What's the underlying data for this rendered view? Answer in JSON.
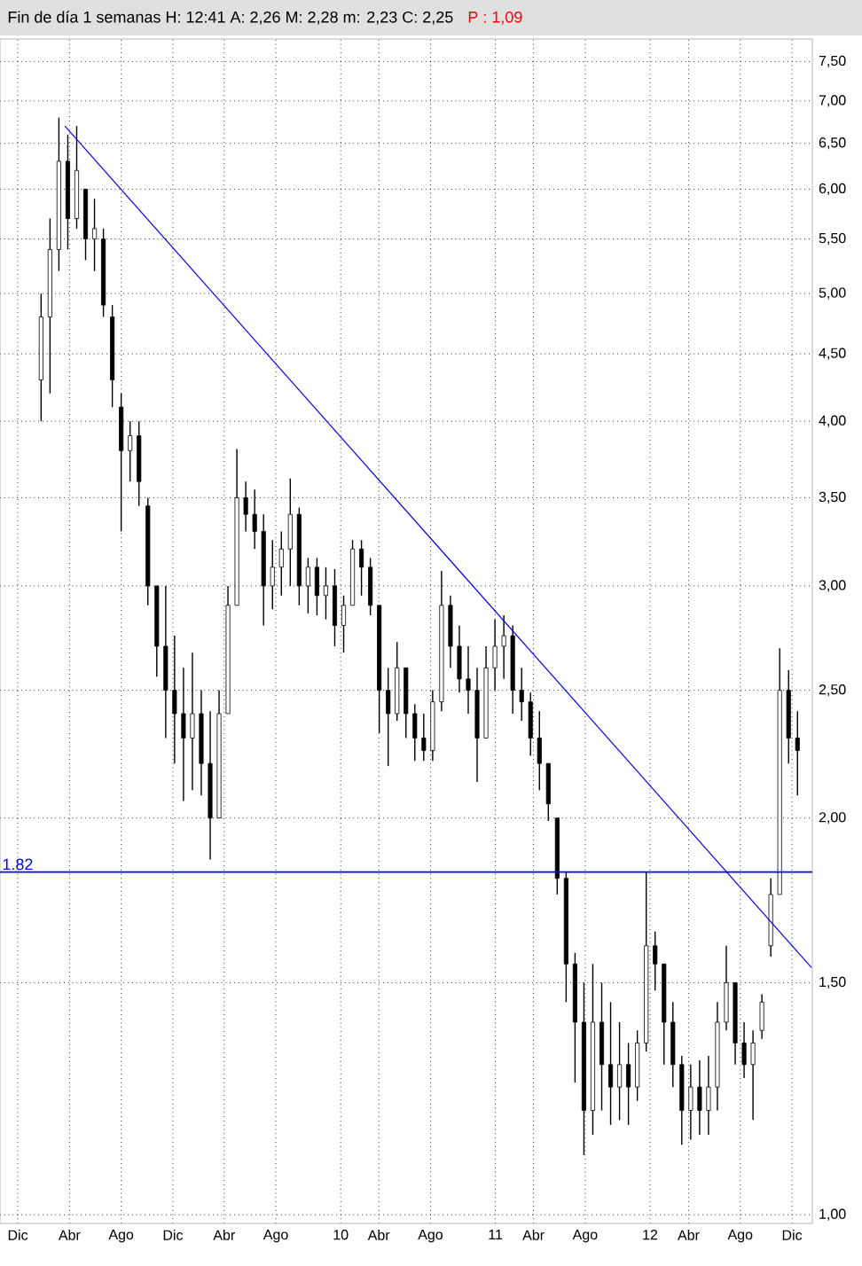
{
  "chart_data": {
    "type": "candlestick",
    "title": "Fin de día 1 semanas  H: 12:41  A: 2,26  M: 2,28  m: 2,23  C: 2,25",
    "subtitle": "P : 1,09",
    "color": "#000000",
    "log": "y",
    "grid": true,
    "xlim": [
      "2007-10-20",
      "2013-01-18"
    ],
    "ylim": [
      0.985,
      7.8
    ],
    "xticks": [
      {
        "value": "2007-12-01",
        "label": "Dic"
      },
      {
        "value": "2008-04-01",
        "label": "Abr"
      },
      {
        "value": "2008-08-01",
        "label": "Ago"
      },
      {
        "value": "2008-12-01",
        "label": "Dic"
      },
      {
        "value": "2009-04-01",
        "label": "Abr"
      },
      {
        "value": "2009-08-01",
        "label": "Ago"
      },
      {
        "value": "2010-01-01",
        "label": "10"
      },
      {
        "value": "2010-04-01",
        "label": "Abr"
      },
      {
        "value": "2010-08-01",
        "label": "Ago"
      },
      {
        "value": "2011-01-01",
        "label": "11"
      },
      {
        "value": "2011-04-01",
        "label": "Abr"
      },
      {
        "value": "2011-08-01",
        "label": "Ago"
      },
      {
        "value": "2012-01-01",
        "label": "12"
      },
      {
        "value": "2012-04-01",
        "label": "Abr"
      },
      {
        "value": "2012-08-01",
        "label": "Ago"
      },
      {
        "value": "2012-12-01",
        "label": "Dic"
      }
    ],
    "yticks": [
      {
        "value": 1.0,
        "label": "1,00"
      },
      {
        "value": 1.5,
        "label": "1,50"
      },
      {
        "value": 2.0,
        "label": "2,00"
      },
      {
        "value": 2.5,
        "label": "2,50"
      },
      {
        "value": 3.0,
        "label": "3,00"
      },
      {
        "value": 3.5,
        "label": "3,50"
      },
      {
        "value": 4.0,
        "label": "4,00"
      },
      {
        "value": 4.5,
        "label": "4,50"
      },
      {
        "value": 5.0,
        "label": "5,00"
      },
      {
        "value": 5.5,
        "label": "5,50"
      },
      {
        "value": 6.0,
        "label": "6,00"
      },
      {
        "value": 6.5,
        "label": "6,50"
      },
      {
        "value": 7.0,
        "label": "7,00"
      },
      {
        "value": 7.5,
        "label": "7,50"
      }
    ],
    "x": [
      "2008-01-25",
      "2008-02-15",
      "2008-03-07",
      "2008-03-28",
      "2008-04-18",
      "2008-05-09",
      "2008-05-30",
      "2008-06-20",
      "2008-07-11",
      "2008-08-01",
      "2008-08-22",
      "2008-09-12",
      "2008-10-03",
      "2008-10-24",
      "2008-11-14",
      "2008-12-05",
      "2008-12-26",
      "2009-01-16",
      "2009-02-06",
      "2009-02-27",
      "2009-03-20",
      "2009-04-10",
      "2009-05-01",
      "2009-05-22",
      "2009-06-12",
      "2009-07-03",
      "2009-07-24",
      "2009-08-14",
      "2009-09-04",
      "2009-09-25",
      "2009-10-16",
      "2009-11-06",
      "2009-11-27",
      "2009-12-18",
      "2010-01-08",
      "2010-01-29",
      "2010-02-19",
      "2010-03-12",
      "2010-04-02",
      "2010-04-23",
      "2010-05-14",
      "2010-06-04",
      "2010-06-25",
      "2010-07-16",
      "2010-08-06",
      "2010-08-27",
      "2010-09-17",
      "2010-10-08",
      "2010-10-29",
      "2010-11-19",
      "2010-12-10",
      "2010-12-31",
      "2011-01-21",
      "2011-02-11",
      "2011-03-04",
      "2011-03-25",
      "2011-04-15",
      "2011-05-06",
      "2011-05-27",
      "2011-06-17",
      "2011-07-08",
      "2011-07-29",
      "2011-08-19",
      "2011-09-09",
      "2011-09-30",
      "2011-10-21",
      "2011-11-11",
      "2011-12-02",
      "2011-12-23",
      "2012-01-13",
      "2012-02-03",
      "2012-02-24",
      "2012-03-16",
      "2012-04-06",
      "2012-04-27",
      "2012-05-18",
      "2012-06-08",
      "2012-06-29",
      "2012-07-20",
      "2012-08-10",
      "2012-08-31",
      "2012-09-21",
      "2012-10-12",
      "2012-11-02",
      "2012-11-23",
      "2012-12-14"
    ],
    "ohlc": [
      [
        4.3,
        5.0,
        4.0,
        4.8
      ],
      [
        4.8,
        5.7,
        4.2,
        5.4
      ],
      [
        5.4,
        6.8,
        5.2,
        6.3
      ],
      [
        6.3,
        6.6,
        5.4,
        5.7
      ],
      [
        5.7,
        6.7,
        5.6,
        6.2
      ],
      [
        6.0,
        6.0,
        5.3,
        5.5
      ],
      [
        5.5,
        5.9,
        5.2,
        5.6
      ],
      [
        5.5,
        5.6,
        4.8,
        4.9
      ],
      [
        4.8,
        4.9,
        4.1,
        4.3
      ],
      [
        4.1,
        4.2,
        3.3,
        3.8
      ],
      [
        3.8,
        4.0,
        3.6,
        3.9
      ],
      [
        3.9,
        4.0,
        3.45,
        3.6
      ],
      [
        3.45,
        3.5,
        2.9,
        3.0
      ],
      [
        3.0,
        3.0,
        2.56,
        2.7
      ],
      [
        2.7,
        3.0,
        2.3,
        2.5
      ],
      [
        2.5,
        2.75,
        2.2,
        2.4
      ],
      [
        2.4,
        2.6,
        2.06,
        2.3
      ],
      [
        2.3,
        2.67,
        2.1,
        2.4
      ],
      [
        2.4,
        2.5,
        2.08,
        2.2
      ],
      [
        2.2,
        2.41,
        1.86,
        2.0
      ],
      [
        2.0,
        2.5,
        2.0,
        2.4
      ],
      [
        2.4,
        3.0,
        2.4,
        2.9
      ],
      [
        2.9,
        3.81,
        2.9,
        3.5
      ],
      [
        3.5,
        3.6,
        3.3,
        3.4
      ],
      [
        3.4,
        3.55,
        3.2,
        3.3
      ],
      [
        3.3,
        3.4,
        2.8,
        3.0
      ],
      [
        3.0,
        3.25,
        2.88,
        3.1
      ],
      [
        3.1,
        3.3,
        2.95,
        3.2
      ],
      [
        3.2,
        3.62,
        3.0,
        3.4
      ],
      [
        3.4,
        3.44,
        2.9,
        3.0
      ],
      [
        3.0,
        3.15,
        2.86,
        3.1
      ],
      [
        3.1,
        3.15,
        2.85,
        2.95
      ],
      [
        2.95,
        3.1,
        2.83,
        3.0
      ],
      [
        3.0,
        3.09,
        2.7,
        2.8
      ],
      [
        2.8,
        2.95,
        2.67,
        2.9
      ],
      [
        2.9,
        3.25,
        2.9,
        3.2
      ],
      [
        3.2,
        3.25,
        2.95,
        3.1
      ],
      [
        3.1,
        3.15,
        2.85,
        2.9
      ],
      [
        2.9,
        2.9,
        2.32,
        2.5
      ],
      [
        2.5,
        2.6,
        2.19,
        2.4
      ],
      [
        2.4,
        2.72,
        2.37,
        2.6
      ],
      [
        2.6,
        2.6,
        2.3,
        2.4
      ],
      [
        2.4,
        2.44,
        2.21,
        2.3
      ],
      [
        2.3,
        2.4,
        2.21,
        2.25
      ],
      [
        2.25,
        2.5,
        2.21,
        2.45
      ],
      [
        2.45,
        3.08,
        2.41,
        2.9
      ],
      [
        2.9,
        2.95,
        2.6,
        2.7
      ],
      [
        2.7,
        2.8,
        2.49,
        2.55
      ],
      [
        2.55,
        2.7,
        2.4,
        2.5
      ],
      [
        2.5,
        2.6,
        2.13,
        2.3
      ],
      [
        2.3,
        2.7,
        2.3,
        2.6
      ],
      [
        2.6,
        2.83,
        2.5,
        2.7
      ],
      [
        2.7,
        2.85,
        2.55,
        2.75
      ],
      [
        2.75,
        2.8,
        2.4,
        2.5
      ],
      [
        2.5,
        2.6,
        2.37,
        2.45
      ],
      [
        2.45,
        2.49,
        2.23,
        2.3
      ],
      [
        2.3,
        2.41,
        2.1,
        2.2
      ],
      [
        2.2,
        2.2,
        1.99,
        2.05
      ],
      [
        2.0,
        2.0,
        1.75,
        1.8
      ],
      [
        1.8,
        1.82,
        1.45,
        1.55
      ],
      [
        1.55,
        1.58,
        1.26,
        1.4
      ],
      [
        1.4,
        1.5,
        1.11,
        1.2
      ],
      [
        1.2,
        1.55,
        1.15,
        1.4
      ],
      [
        1.4,
        1.5,
        1.2,
        1.3
      ],
      [
        1.3,
        1.45,
        1.17,
        1.25
      ],
      [
        1.25,
        1.4,
        1.18,
        1.3
      ],
      [
        1.3,
        1.35,
        1.17,
        1.25
      ],
      [
        1.25,
        1.38,
        1.22,
        1.35
      ],
      [
        1.35,
        1.82,
        1.33,
        1.6
      ],
      [
        1.6,
        1.64,
        1.48,
        1.55
      ],
      [
        1.55,
        1.55,
        1.3,
        1.4
      ],
      [
        1.4,
        1.45,
        1.25,
        1.3
      ],
      [
        1.3,
        1.32,
        1.13,
        1.2
      ],
      [
        1.2,
        1.3,
        1.14,
        1.25
      ],
      [
        1.25,
        1.31,
        1.15,
        1.2
      ],
      [
        1.2,
        1.32,
        1.15,
        1.25
      ],
      [
        1.25,
        1.45,
        1.2,
        1.4
      ],
      [
        1.4,
        1.6,
        1.38,
        1.5
      ],
      [
        1.5,
        1.5,
        1.3,
        1.35
      ],
      [
        1.35,
        1.4,
        1.27,
        1.3
      ],
      [
        1.3,
        1.38,
        1.18,
        1.35
      ],
      [
        1.38,
        1.47,
        1.36,
        1.45
      ],
      [
        1.6,
        1.8,
        1.57,
        1.75
      ],
      [
        1.75,
        2.69,
        1.75,
        2.5
      ],
      [
        2.5,
        2.59,
        2.2,
        2.3
      ],
      [
        2.3,
        2.41,
        2.08,
        2.25
      ]
    ],
    "series": [
      {
        "type": "line",
        "color": "#0000ff",
        "x": [
          "2008-03-21",
          "2013-01-16"
        ],
        "values": [
          6.7,
          1.54
        ]
      }
    ],
    "ref_lines": [
      {
        "axis": "y",
        "value": 1.82,
        "label": "1.82",
        "color": "#0000ff"
      }
    ]
  }
}
